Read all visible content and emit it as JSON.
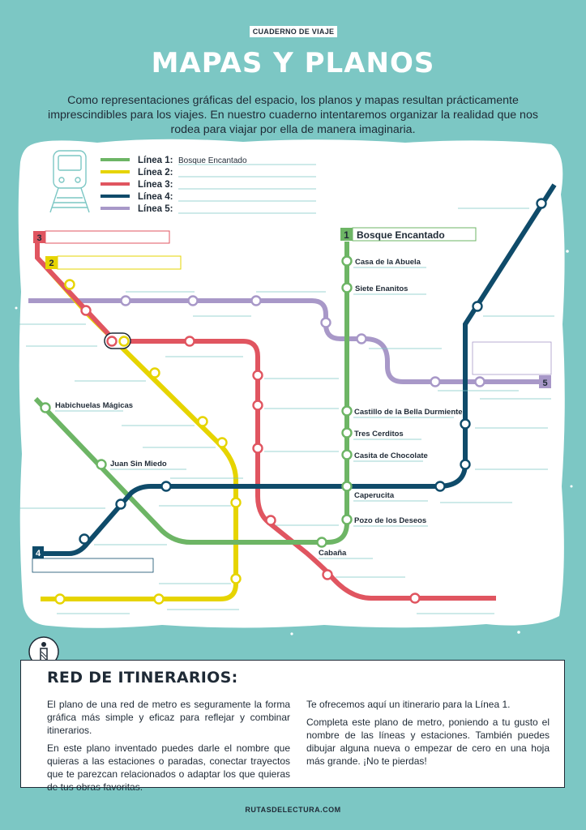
{
  "header": {
    "tag": "CUADERNO DE VIAJE",
    "title": "MAPAS Y PLANOS",
    "intro": "Como representaciones gráficas del espacio, los planos y mapas resultan prácticamente imprescindibles para los viajes. En nuestro cuaderno intentaremos organizar la realidad que nos rodea para viajar por ella de manera imaginaria."
  },
  "legend": [
    {
      "label": "Línea 1:",
      "name": "Bosque Encantado",
      "color": "#6db565"
    },
    {
      "label": "Línea 2:",
      "name": "",
      "color": "#e6d400"
    },
    {
      "label": "Línea 3:",
      "name": "",
      "color": "#e05560"
    },
    {
      "label": "Línea 4:",
      "name": "",
      "color": "#0f4b6a"
    },
    {
      "label": "Línea 5:",
      "name": "",
      "color": "#a898c8"
    }
  ],
  "lines": {
    "line1": {
      "number": "1",
      "name": "Bosque Encantado"
    },
    "line2": {
      "number": "2"
    },
    "line3": {
      "number": "3"
    },
    "line4": {
      "number": "4"
    },
    "line5": {
      "number": "5"
    }
  },
  "stations": {
    "casa_abuela": "Casa de la Abuela",
    "siete_enanitos": "Siete Enanitos",
    "castillo": "Castillo de la Bella Durmiente",
    "tres_cerditos": "Tres Cerditos",
    "casita_chocolate": "Casita de Chocolate",
    "caperucita": "Caperucita",
    "pozo": "Pozo de los Deseos",
    "cabana": "Cabaña",
    "juan": "Juan Sin Miedo",
    "habichuelas": "Habichuelas Mágicas"
  },
  "info": {
    "title": "RED DE ITINERARIOS:",
    "col1_p1": "El plano de una red de metro es seguramente la forma gráfica más simple y eficaz para reflejar y combinar itinerarios.",
    "col1_p2": "En este plano inventado puedes darle el nombre que quieras a las estaciones o paradas, conectar trayectos que te parezcan relacionados o adaptar los que quieras de tus obras favoritas.",
    "col2_p1": "Te ofrecemos aquí un itinerario para la Línea 1.",
    "col2_p2": "Completa este plano de metro, poniendo a tu gusto el nombre de las líneas y estaciones. También puedes dibujar alguna nueva o empezar de cero en una hoja más grande. ¡No te pierdas!"
  },
  "footer": "RUTASDELECTURA.COM",
  "colors": {
    "background": "#7cc7c4",
    "line1": "#6db565",
    "line2": "#e6d400",
    "line3": "#e05560",
    "line4": "#0f4b6a",
    "line5": "#a898c8"
  }
}
